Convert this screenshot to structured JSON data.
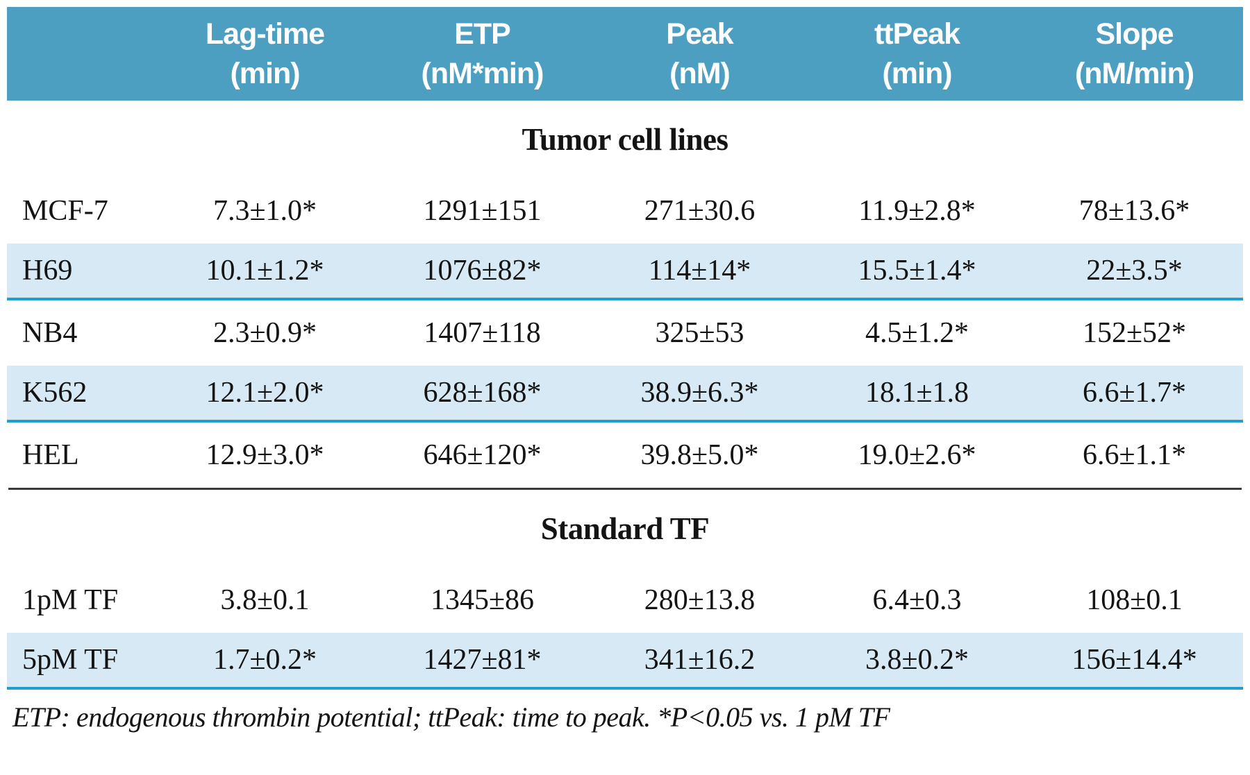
{
  "table": {
    "columns": [
      {
        "name": "Lag-time",
        "unit": "(min)"
      },
      {
        "name": "ETP",
        "unit": "(nM*min)"
      },
      {
        "name": "Peak",
        "unit": "(nM)"
      },
      {
        "name": "ttPeak",
        "unit": "(min)"
      },
      {
        "name": "Slope",
        "unit": "(nM/min)"
      }
    ],
    "sections": [
      {
        "title": "Tumor cell lines",
        "rows": [
          {
            "label": "MCF-7",
            "values": [
              "7.3±1.0*",
              "1291±151",
              "271±30.6",
              "11.9±2.8*",
              "78±13.6*"
            ]
          },
          {
            "label": "H69",
            "values": [
              "10.1±1.2*",
              "1076±82*",
              "114±14*",
              "15.5±1.4*",
              "22±3.5*"
            ]
          },
          {
            "label": "NB4",
            "values": [
              "2.3±0.9*",
              "1407±118",
              "325±53",
              "4.5±1.2*",
              "152±52*"
            ]
          },
          {
            "label": "K562",
            "values": [
              "12.1±2.0*",
              "628±168*",
              "38.9±6.3*",
              "18.1±1.8",
              "6.6±1.7*"
            ]
          },
          {
            "label": "HEL",
            "values": [
              "12.9±3.0*",
              "646±120*",
              "39.8±5.0*",
              "19.0±2.6*",
              "6.6±1.1*"
            ]
          }
        ]
      },
      {
        "title": "Standard TF",
        "rows": [
          {
            "label": "1pM TF",
            "values": [
              "3.8±0.1",
              "1345±86",
              "280±13.8",
              "6.4±0.3",
              "108±0.1"
            ]
          },
          {
            "label": "5pM TF",
            "values": [
              "1.7±0.2*",
              "1427±81*",
              "341±16.2",
              "3.8±0.2*",
              "156±14.4*"
            ]
          }
        ]
      }
    ],
    "footnote": "ETP: endogenous thrombin potential; ttPeak: time to peak. *P<0.05 vs. 1 pM TF"
  },
  "colors": {
    "header_bg": "#4d9fc2",
    "highlight_bg": "#d6e9f5",
    "highlight_border": "#1f9fcb",
    "text": "#141414"
  }
}
